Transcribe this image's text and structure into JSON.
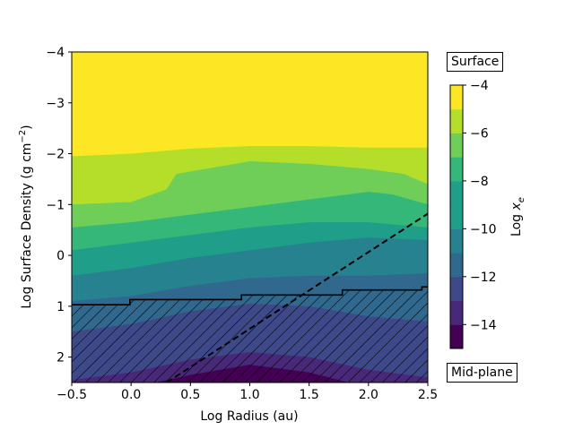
{
  "chart_data": {
    "type": "contour",
    "xlabel": "Log Radius (au)",
    "ylabel_parts": [
      "Log Surface Density (g cm",
      "−2",
      ")"
    ],
    "xlim": [
      -0.5,
      2.5
    ],
    "ylim": [
      2.5,
      -4
    ],
    "x_ticks": [
      "−0.5",
      "0.0",
      "0.5",
      "1.0",
      "1.5",
      "2.0",
      "2.5"
    ],
    "x_tick_values": [
      -0.5,
      0.0,
      0.5,
      1.0,
      1.5,
      2.0,
      2.5
    ],
    "y_ticks": [
      "−4",
      "−3",
      "−2",
      "−1",
      "0",
      "1",
      "2"
    ],
    "y_tick_values": [
      -4,
      -3,
      -2,
      -1,
      0,
      1,
      2
    ],
    "colorbar": {
      "label_prefix": "Log ",
      "label_var": "x",
      "label_sub": "e",
      "levels": [
        -15,
        -14,
        -13,
        -12,
        -11,
        -10,
        -9,
        -8,
        -7,
        -6,
        -5,
        -4
      ],
      "ticks": [
        "−4",
        "−6",
        "−8",
        "−10",
        "−12",
        "−14"
      ],
      "tick_values": [
        -4,
        -6,
        -8,
        -10,
        -12,
        -14
      ],
      "colors": [
        "#440154",
        "#482878",
        "#3e4989",
        "#31688e",
        "#26828e",
        "#1f9e89",
        "#35b779",
        "#6ece58",
        "#b5de2b",
        "#fde725"
      ]
    },
    "contour_boundaries": [
      {
        "level": -5,
        "x": [
          -0.5,
          0.0,
          0.5,
          1.0,
          1.5,
          2.0,
          2.5
        ],
        "y": [
          -1.95,
          -2.0,
          -2.1,
          -2.15,
          -2.15,
          -2.12,
          -2.12
        ]
      },
      {
        "level": -6,
        "x": [
          -0.5,
          0.0,
          0.3,
          0.38,
          0.5,
          1.0,
          1.5,
          2.0,
          2.3,
          2.5
        ],
        "y": [
          -1.0,
          -1.05,
          -1.3,
          -1.6,
          -1.65,
          -1.85,
          -1.8,
          -1.7,
          -1.6,
          -1.4
        ]
      },
      {
        "level": -7,
        "x": [
          -0.5,
          0.0,
          0.5,
          1.0,
          1.5,
          2.0,
          2.2,
          2.5
        ],
        "y": [
          -0.55,
          -0.65,
          -0.8,
          -0.95,
          -1.1,
          -1.25,
          -1.2,
          -1.0
        ]
      },
      {
        "level": -8,
        "x": [
          -0.5,
          0.0,
          0.5,
          1.0,
          1.5,
          2.0,
          2.5
        ],
        "y": [
          -0.1,
          -0.25,
          -0.4,
          -0.55,
          -0.65,
          -0.65,
          -0.55
        ]
      },
      {
        "level": -9,
        "x": [
          -0.5,
          0.0,
          0.5,
          1.0,
          1.5,
          2.0,
          2.5
        ],
        "y": [
          0.4,
          0.25,
          0.05,
          -0.1,
          -0.25,
          -0.35,
          -0.3
        ]
      },
      {
        "level": -10,
        "x": [
          -0.5,
          0.0,
          0.5,
          1.0,
          1.5,
          2.0,
          2.5
        ],
        "y": [
          0.9,
          0.8,
          0.6,
          0.45,
          0.4,
          0.4,
          0.35
        ]
      },
      {
        "level": -11,
        "x": [
          -0.5,
          0.0,
          0.5,
          1.0,
          1.5,
          2.0,
          2.5
        ],
        "y": [
          1.5,
          1.35,
          1.1,
          0.95,
          1.0,
          1.2,
          1.3
        ]
      },
      {
        "level": -12,
        "x": [
          -0.5,
          0.0,
          0.5,
          1.0,
          1.5,
          2.0,
          2.5
        ],
        "y": [
          2.45,
          2.3,
          2.05,
          1.9,
          2.0,
          2.25,
          2.4
        ]
      },
      {
        "level": -13,
        "x": [
          -0.5,
          0.0,
          0.5,
          1.0,
          1.5,
          2.0,
          2.5
        ],
        "y": [
          2.6,
          2.6,
          2.35,
          2.15,
          2.3,
          2.6,
          2.6
        ]
      }
    ],
    "hatched_region_upper_boundary": {
      "x": [
        -0.5,
        -0.01,
        -0.01,
        0.93,
        0.93,
        1.78,
        1.78,
        2.45,
        2.45,
        2.5
      ],
      "y": [
        0.97,
        0.97,
        0.87,
        0.87,
        0.78,
        0.78,
        0.68,
        0.68,
        0.62,
        0.62
      ]
    },
    "dashed_line": {
      "x": [
        0.3,
        2.5
      ],
      "y": [
        2.5,
        -0.82
      ]
    },
    "annotations": {
      "top": "Surface",
      "bottom": "Mid-plane"
    }
  }
}
